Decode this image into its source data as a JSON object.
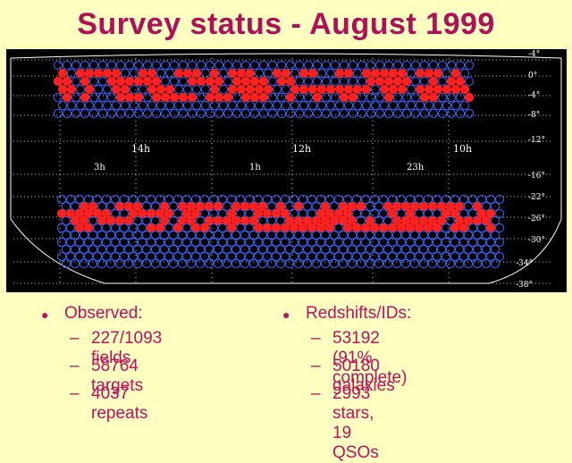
{
  "title": "Survey status - August 1999",
  "map": {
    "ra_labels_north": [
      "14h",
      "12h",
      "10h"
    ],
    "ra_labels_south": [
      "3h",
      "1h",
      "23h"
    ],
    "dec_labels": [
      "-4°",
      "0°",
      "-4°",
      "-8°",
      "-12°",
      "-16°",
      "-22°",
      "-26°",
      "-30°",
      "-34°",
      "-38°"
    ],
    "colors": {
      "observed_field": "#ff2020",
      "pending_field": "#3366ff",
      "background": "#000000",
      "grid": "#ffffff"
    }
  },
  "left": {
    "heading": "Observed:",
    "items": [
      "227/1093 fields",
      "58764 targets",
      "4037 repeats"
    ]
  },
  "right": {
    "heading": "Redshifts/IDs:",
    "items": [
      "53192 (91% complete)",
      "50180 galaxies",
      "2993 stars, 19 QSOs"
    ]
  }
}
